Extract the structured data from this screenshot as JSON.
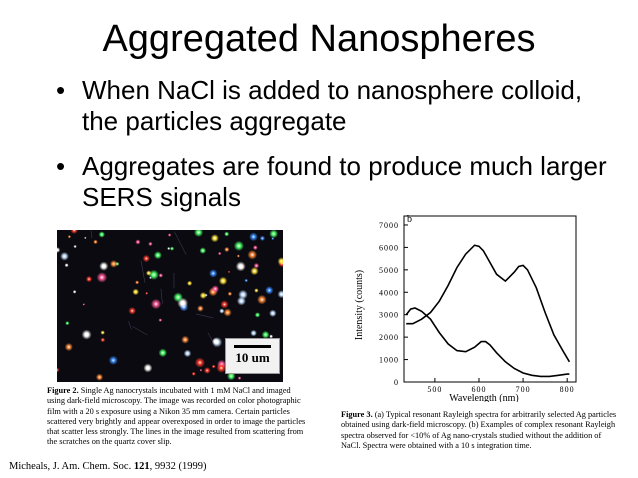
{
  "slide": {
    "title": "Aggregated Nanospheres",
    "bullets": [
      "When NaCl is added to nanosphere colloid, the particles aggregate",
      "Aggregates are found to produce much larger SERS signals"
    ],
    "bullet_glyph": "•",
    "citation_prefix": "Micheals, J. Am. Chem. Soc. ",
    "citation_volume": "121",
    "citation_suffix": ", 9932 (1999)"
  },
  "figure2": {
    "scale_label": "10 um",
    "caption_label": "Figure 2.",
    "caption_text": "Single Ag nanocrystals incubated with 1 mM NaCl and imaged using dark-field microscopy. The image was recorded on color photographic film with a 20 s exposure using a Nikon 35 mm camera. Certain particles scattered very brightly and appear overexposed in order to image the particles that scatter less strongly. The lines in the image resulted from scattering from the scratches on the quartz cover slip."
  },
  "figure3": {
    "caption_label": "Figure 3.",
    "caption_text": "(a) Typical resonant Rayleigh spectra for arbitrarily selected Ag particles obtained using dark-field microscopy. (b) Examples of complex resonant Rayleigh spectra observed for <10% of Ag nano-crystals studied without the addition of NaCl. Spectra were obtained with a 10 s integration time."
  },
  "chart_data": {
    "type": "line",
    "panel_label": "b",
    "xlabel": "Wavelength (nm)",
    "ylabel": "Intensity (counts)",
    "xlim": [
      430,
      820
    ],
    "ylim": [
      0,
      7400
    ],
    "xticks": [
      500,
      600,
      700,
      800
    ],
    "yticks": [
      0,
      1000,
      2000,
      3000,
      4000,
      5000,
      6000,
      7000
    ],
    "series": [
      {
        "x": [
          435,
          450,
          470,
          490,
          510,
          530,
          550,
          570,
          590,
          600,
          610,
          620,
          640,
          660,
          680,
          690,
          700,
          710,
          730,
          750,
          770,
          790,
          805
        ],
        "values": [
          2600,
          2600,
          2800,
          3100,
          3600,
          4300,
          5100,
          5700,
          6100,
          6050,
          5850,
          5500,
          4800,
          4500,
          4900,
          5150,
          5200,
          5000,
          4200,
          3100,
          2100,
          1400,
          900
        ]
      },
      {
        "x": [
          435,
          445,
          455,
          470,
          490,
          510,
          530,
          550,
          570,
          590,
          605,
          615,
          625,
          640,
          660,
          680,
          700,
          720,
          740,
          760,
          780,
          800,
          805
        ],
        "values": [
          3000,
          3250,
          3300,
          3150,
          2800,
          2200,
          1700,
          1400,
          1350,
          1550,
          1800,
          1800,
          1650,
          1300,
          900,
          600,
          400,
          300,
          250,
          250,
          300,
          350,
          350
        ]
      }
    ]
  }
}
